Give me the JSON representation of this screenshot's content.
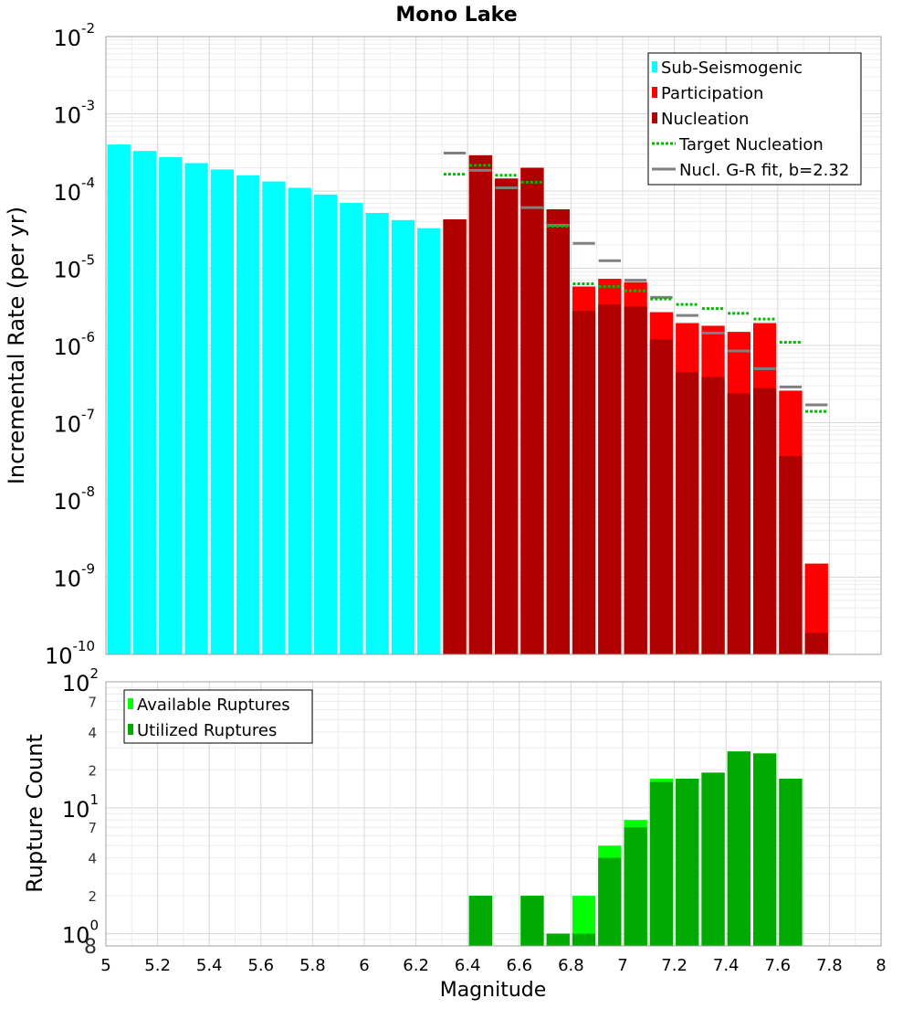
{
  "chart_data": [
    {
      "type": "bar",
      "title": "Mono Lake",
      "xlabel": "",
      "ylabel": "Incremental Rate (per yr)",
      "yscale": "log",
      "xlim": [
        5,
        8
      ],
      "ylim": [
        1e-10,
        0.01
      ],
      "y_ticks": [
        {
          "base": "10",
          "exp": "-10",
          "value": 1e-10
        },
        {
          "base": "10",
          "exp": "-9",
          "value": 1e-09
        },
        {
          "base": "10",
          "exp": "-8",
          "value": 1e-08
        },
        {
          "base": "10",
          "exp": "-7",
          "value": 1e-07
        },
        {
          "base": "10",
          "exp": "-6",
          "value": 1e-06
        },
        {
          "base": "10",
          "exp": "-5",
          "value": 1e-05
        },
        {
          "base": "10",
          "exp": "-4",
          "value": 0.0001
        },
        {
          "base": "10",
          "exp": "-3",
          "value": 0.001
        },
        {
          "base": "10",
          "exp": "-2",
          "value": 0.01
        }
      ],
      "legend": {
        "position": "top-right",
        "entries": [
          {
            "label": "Sub-Seismogenic",
            "color": "#00ffff",
            "style": "bar"
          },
          {
            "label": "Participation",
            "color": "#ff0000",
            "style": "bar"
          },
          {
            "label": "Nucleation",
            "color": "#b00000",
            "style": "bar"
          },
          {
            "label": " Target Nucleation",
            "color": "#00bb00",
            "style": "dotted-line"
          },
          {
            "label": "Nucl. G-R fit, b=2.32",
            "color": "#808080",
            "style": "line"
          }
        ]
      },
      "bin_width": 0.1,
      "series": [
        {
          "name": "Sub-Seismogenic",
          "color": "#00ffff",
          "x": [
            5.05,
            5.15,
            5.25,
            5.35,
            5.45,
            5.55,
            5.65,
            5.75,
            5.85,
            5.95,
            6.05,
            6.15,
            6.25
          ],
          "values": [
            0.0004,
            0.00033,
            0.000275,
            0.00023,
            0.00019,
            0.00016,
            0.000133,
            0.00011,
            9e-05,
            7e-05,
            5.2e-05,
            4.2e-05,
            3.3e-05
          ]
        },
        {
          "name": "Participation",
          "color": "#ff0000",
          "x": [
            6.35,
            6.45,
            6.55,
            6.65,
            6.75,
            6.85,
            6.95,
            7.05,
            7.15,
            7.25,
            7.35,
            7.45,
            7.55,
            7.65,
            7.75
          ],
          "values": [
            4.3e-05,
            0.00029,
            0.000145,
            0.0002,
            5.8e-05,
            5.8e-06,
            7.3e-06,
            6.6e-06,
            2.7e-06,
            1.95e-06,
            1.8e-06,
            1.5e-06,
            1.95e-06,
            2.6e-07,
            1.5e-09
          ]
        },
        {
          "name": "Nucleation",
          "color": "#b00000",
          "x": [
            6.35,
            6.45,
            6.55,
            6.65,
            6.75,
            6.85,
            6.95,
            7.05,
            7.15,
            7.25,
            7.35,
            7.45,
            7.55,
            7.65,
            7.75
          ],
          "values": [
            4.3e-05,
            0.00029,
            0.000145,
            0.0002,
            5.8e-05,
            2.8e-06,
            3.4e-06,
            3.2e-06,
            1.2e-06,
            4.5e-07,
            3.9e-07,
            2.4e-07,
            2.8e-07,
            3.7e-08,
            1.9e-10
          ]
        },
        {
          "name": "Target Nucleation",
          "color": "#00bb00",
          "x": [
            6.35,
            6.45,
            6.55,
            6.65,
            6.75,
            6.85,
            6.95,
            7.05,
            7.15,
            7.25,
            7.35,
            7.45,
            7.55,
            7.65,
            7.75
          ],
          "values": [
            0.000165,
            0.000215,
            0.00016,
            0.00013,
            3.5e-05,
            6.3e-06,
            5.8e-06,
            5.1e-06,
            4e-06,
            3.4e-06,
            3e-06,
            2.6e-06,
            2.2e-06,
            1.1e-06,
            1.4e-07
          ]
        },
        {
          "name": "Nucl. G-R fit, b=2.32",
          "color": "#808080",
          "x": [
            6.35,
            6.45,
            6.55,
            6.65,
            6.75,
            6.85,
            6.95,
            7.05,
            7.15,
            7.25,
            7.35,
            7.45,
            7.55,
            7.65,
            7.75
          ],
          "values": [
            0.00031,
            0.000185,
            0.00011,
            6.1e-05,
            3.6e-05,
            2.1e-05,
            1.25e-05,
            7e-06,
            4.2e-06,
            2.45e-06,
            1.45e-06,
            8.5e-07,
            5e-07,
            2.9e-07,
            1.7e-07
          ]
        }
      ]
    },
    {
      "type": "bar",
      "title": "",
      "xlabel": "Magnitude",
      "ylabel": "Rupture Count",
      "yscale": "log",
      "xlim": [
        5,
        8
      ],
      "ylim": [
        0.8,
        100
      ],
      "x_ticks": [
        "5",
        "5.2",
        "5.4",
        "5.6",
        "5.8",
        "6",
        "6.2",
        "6.4",
        "6.6",
        "6.8",
        "7",
        "7.2",
        "7.4",
        "7.6",
        "7.8",
        "8"
      ],
      "y_major_ticks": [
        {
          "base": "10",
          "exp": "0",
          "value": 1
        },
        {
          "base": "10",
          "exp": "1",
          "value": 10
        },
        {
          "base": "10",
          "exp": "2",
          "value": 100
        }
      ],
      "y_minor_ticks": [
        {
          "label": "8",
          "value": 0.8
        },
        {
          "label": "2",
          "value": 2
        },
        {
          "label": "4",
          "value": 4
        },
        {
          "label": "7",
          "value": 7
        },
        {
          "label": "2",
          "value": 20
        },
        {
          "label": "4",
          "value": 40
        },
        {
          "label": "7",
          "value": 70
        }
      ],
      "legend": {
        "position": "top-left",
        "entries": [
          {
            "label": "Available Ruptures",
            "color": "#00ff00"
          },
          {
            "label": "Utilized Ruptures",
            "color": "#00aa00"
          }
        ]
      },
      "bin_width": 0.1,
      "series": [
        {
          "name": "Available Ruptures",
          "color": "#00ff00",
          "x": [
            6.45,
            6.65,
            6.75,
            6.85,
            6.95,
            7.05,
            7.15,
            7.25,
            7.35,
            7.45,
            7.55,
            7.65
          ],
          "values": [
            2,
            2,
            1,
            2,
            5,
            8,
            17,
            17,
            19,
            28,
            27,
            17
          ]
        },
        {
          "name": "Utilized Ruptures",
          "color": "#00aa00",
          "x": [
            6.45,
            6.65,
            6.75,
            6.85,
            6.95,
            7.05,
            7.15,
            7.25,
            7.35,
            7.45,
            7.55,
            7.65
          ],
          "values": [
            2,
            2,
            1,
            1,
            4,
            7,
            16,
            17,
            19,
            28,
            27,
            17
          ]
        }
      ]
    }
  ]
}
